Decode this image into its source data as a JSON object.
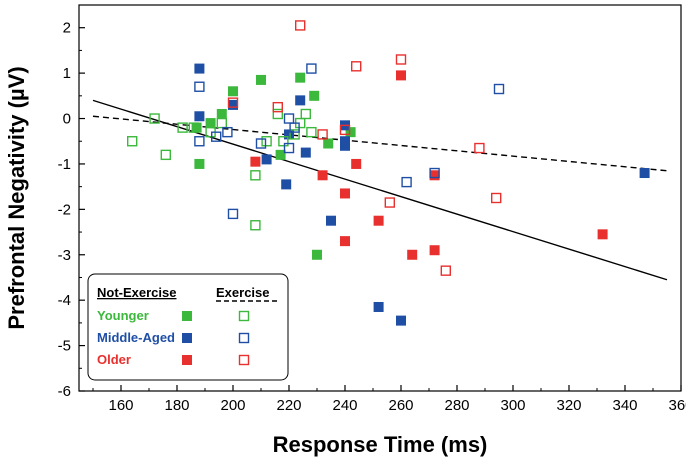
{
  "chart_data": {
    "type": "scatter",
    "xlabel": "Response Time (ms)",
    "ylabel": "Prefrontal Negativity (µV)",
    "xlim": [
      145,
      360
    ],
    "ylim": [
      -6,
      2.5
    ],
    "xticks": [
      160,
      180,
      200,
      220,
      240,
      260,
      280,
      300,
      320,
      340,
      360
    ],
    "yticks": [
      -6,
      -5,
      -4,
      -3,
      -2,
      -1,
      0,
      1,
      2
    ],
    "colors": {
      "younger": "#3cb83c",
      "middle": "#1f4fa5",
      "older": "#e8302e"
    },
    "legend": {
      "position": "bottom-left",
      "header_not_exercise": "Not-Exercise",
      "header_exercise": "Exercise",
      "groups": [
        {
          "label": "Younger",
          "key": "younger"
        },
        {
          "label": "Middle-Aged",
          "key": "middle"
        },
        {
          "label": "Older",
          "key": "older"
        }
      ]
    },
    "series": [
      {
        "name": "Younger Not-Exercise",
        "group": "younger",
        "filled": true,
        "points": [
          [
            188,
            -1.0
          ],
          [
            192,
            -0.1
          ],
          [
            196,
            0.1
          ],
          [
            200,
            0.6
          ],
          [
            210,
            0.85
          ],
          [
            217,
            -0.8
          ],
          [
            224,
            0.9
          ],
          [
            229,
            0.5
          ],
          [
            230,
            -3.0
          ],
          [
            234,
            -0.55
          ],
          [
            242,
            -0.3
          ],
          [
            187,
            -0.2
          ]
        ]
      },
      {
        "name": "Middle-Aged Not-Exercise",
        "group": "middle",
        "filled": true,
        "points": [
          [
            188,
            1.1
          ],
          [
            188,
            0.05
          ],
          [
            200,
            0.3
          ],
          [
            212,
            -0.9
          ],
          [
            219,
            -1.45
          ],
          [
            220,
            -0.35
          ],
          [
            224,
            0.4
          ],
          [
            226,
            -0.75
          ],
          [
            235,
            -2.25
          ],
          [
            240,
            -0.15
          ],
          [
            240,
            -0.5
          ],
          [
            240,
            -0.6
          ],
          [
            252,
            -4.15
          ],
          [
            260,
            -4.45
          ],
          [
            347,
            -1.2
          ]
        ]
      },
      {
        "name": "Older Not-Exercise",
        "group": "older",
        "filled": true,
        "points": [
          [
            208,
            -0.95
          ],
          [
            232,
            -1.25
          ],
          [
            240,
            -1.65
          ],
          [
            240,
            -2.7
          ],
          [
            244,
            -1.0
          ],
          [
            252,
            -2.25
          ],
          [
            260,
            0.95
          ],
          [
            264,
            -3.0
          ],
          [
            272,
            -2.9
          ],
          [
            272,
            -1.25
          ],
          [
            332,
            -2.55
          ]
        ]
      },
      {
        "name": "Younger Exercise",
        "group": "younger",
        "filled": false,
        "points": [
          [
            164,
            -0.5
          ],
          [
            172,
            0.0
          ],
          [
            176,
            -0.8
          ],
          [
            182,
            -0.2
          ],
          [
            186,
            -0.2
          ],
          [
            192,
            -0.3
          ],
          [
            196,
            -0.1
          ],
          [
            208,
            -1.25
          ],
          [
            208,
            -2.35
          ],
          [
            212,
            -0.5
          ],
          [
            216,
            0.1
          ],
          [
            218,
            -0.5
          ],
          [
            222,
            -0.35
          ],
          [
            224,
            -0.1
          ],
          [
            226,
            0.1
          ],
          [
            228,
            -0.3
          ]
        ]
      },
      {
        "name": "Middle-Aged Exercise",
        "group": "middle",
        "filled": false,
        "points": [
          [
            188,
            -0.5
          ],
          [
            188,
            0.7
          ],
          [
            194,
            -0.4
          ],
          [
            198,
            -0.3
          ],
          [
            200,
            -2.1
          ],
          [
            210,
            -0.55
          ],
          [
            220,
            -0.65
          ],
          [
            220,
            0.0
          ],
          [
            222,
            -0.2
          ],
          [
            228,
            1.1
          ],
          [
            262,
            -1.4
          ],
          [
            272,
            -1.2
          ],
          [
            295,
            0.65
          ]
        ]
      },
      {
        "name": "Older Exercise",
        "group": "older",
        "filled": false,
        "points": [
          [
            200,
            0.35
          ],
          [
            216,
            0.25
          ],
          [
            224,
            2.05
          ],
          [
            232,
            -0.35
          ],
          [
            240,
            -0.25
          ],
          [
            244,
            1.15
          ],
          [
            256,
            -1.85
          ],
          [
            260,
            1.3
          ],
          [
            276,
            -3.35
          ],
          [
            288,
            -0.65
          ],
          [
            294,
            -1.75
          ]
        ]
      }
    ],
    "fit_lines": [
      {
        "name": "Not-Exercise fit",
        "style": "solid",
        "x": [
          150,
          355
        ],
        "y": [
          0.4,
          -3.55
        ]
      },
      {
        "name": "Exercise fit",
        "style": "dashed",
        "x": [
          150,
          355
        ],
        "y": [
          0.05,
          -1.15
        ]
      }
    ]
  }
}
